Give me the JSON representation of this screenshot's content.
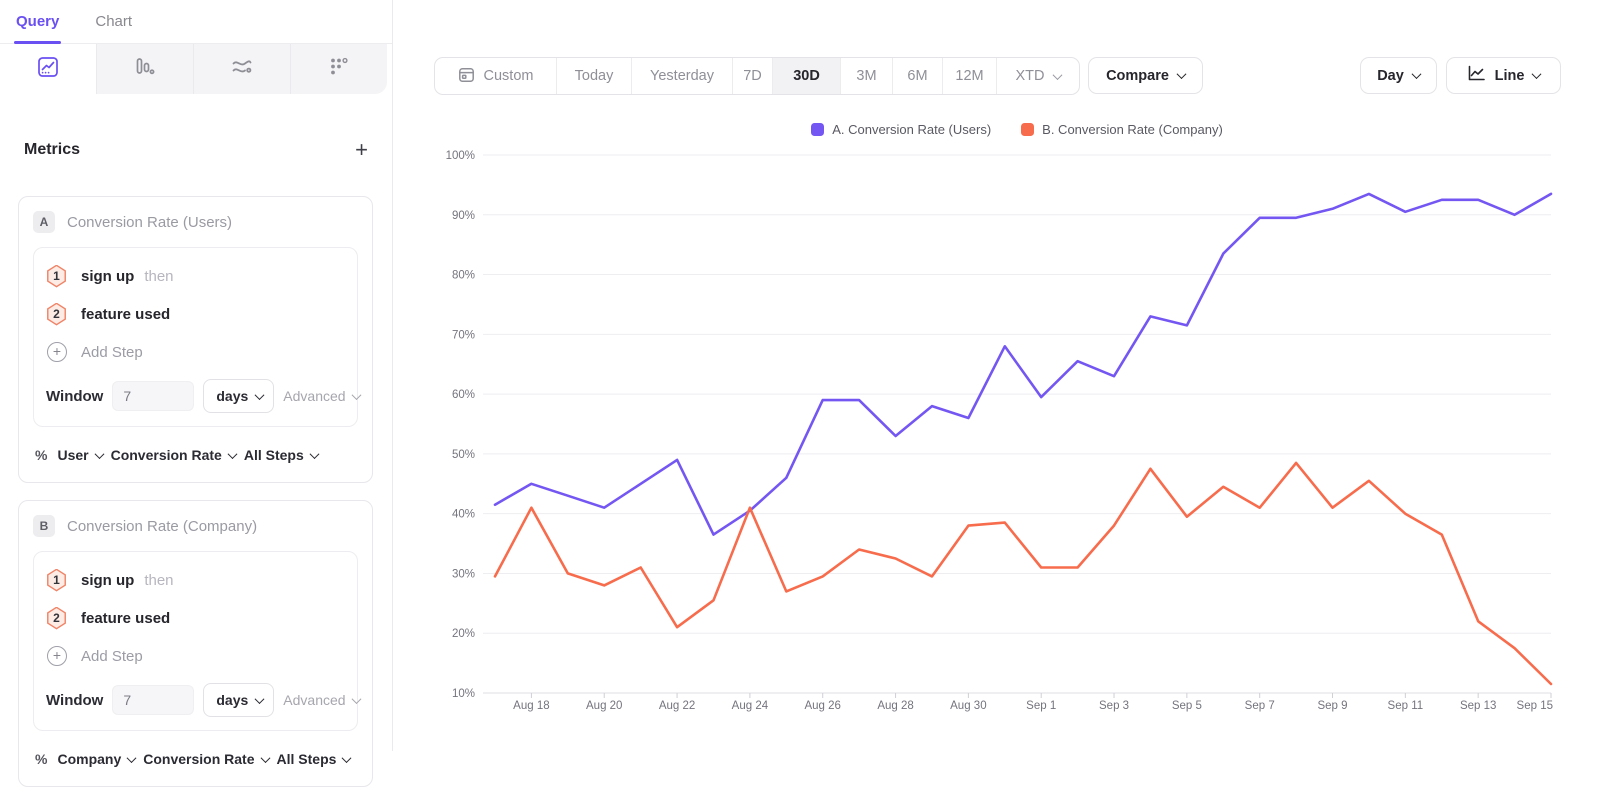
{
  "sidebar": {
    "tabs": [
      {
        "label": "Query"
      },
      {
        "label": "Chart"
      }
    ],
    "view_tabs": [
      {
        "icon": "insights-icon",
        "active": true
      },
      {
        "icon": "funnels-icon",
        "active": false
      },
      {
        "icon": "flows-icon",
        "active": false
      },
      {
        "icon": "retention-icon",
        "active": false
      }
    ],
    "metrics": {
      "title": "Metrics",
      "add_button": "+",
      "cards": [
        {
          "letter": "A",
          "name": "Conversion Rate (Users)",
          "steps": [
            {
              "number": "1",
              "event": "sign up",
              "suffix": "then"
            },
            {
              "number": "2",
              "event": "feature used",
              "suffix": ""
            }
          ],
          "add_step_label": "Add Step",
          "window_label": "Window",
          "window_value": "7",
          "window_unit": "days",
          "advanced_label": "Advanced",
          "measure": {
            "symbol": "%",
            "entity": "User",
            "metric": "Conversion Rate",
            "scope": "All Steps"
          }
        },
        {
          "letter": "B",
          "name": "Conversion Rate (Company)",
          "steps": [
            {
              "number": "1",
              "event": "sign up",
              "suffix": "then"
            },
            {
              "number": "2",
              "event": "feature used",
              "suffix": ""
            }
          ],
          "add_step_label": "Add Step",
          "window_label": "Window",
          "window_value": "7",
          "window_unit": "days",
          "advanced_label": "Advanced",
          "measure": {
            "symbol": "%",
            "entity": "Company",
            "metric": "Conversion Rate",
            "scope": "All Steps"
          }
        }
      ]
    }
  },
  "toolbar": {
    "date_ranges": [
      {
        "label": "Custom"
      },
      {
        "label": "Today"
      },
      {
        "label": "Yesterday"
      },
      {
        "label": "7D"
      },
      {
        "label": "30D"
      },
      {
        "label": "3M"
      },
      {
        "label": "6M"
      },
      {
        "label": "12M"
      },
      {
        "label": "XTD"
      }
    ],
    "selected_range": "30D",
    "compare_label": "Compare",
    "granularity_label": "Day",
    "chart_type_label": "Line"
  },
  "chart_data": {
    "type": "line",
    "x": [
      "Aug 17",
      "Aug 18",
      "Aug 19",
      "Aug 20",
      "Aug 21",
      "Aug 22",
      "Aug 23",
      "Aug 24",
      "Aug 25",
      "Aug 26",
      "Aug 27",
      "Aug 28",
      "Aug 29",
      "Aug 30",
      "Aug 31",
      "Sep 1",
      "Sep 2",
      "Sep 3",
      "Sep 4",
      "Sep 5",
      "Sep 6",
      "Sep 7",
      "Sep 8",
      "Sep 9",
      "Sep 10",
      "Sep 11",
      "Sep 12",
      "Sep 13",
      "Sep 14",
      "Sep 15"
    ],
    "series": [
      {
        "name": "A. Conversion Rate (Users)",
        "color": "#7457f2",
        "values": [
          41.5,
          45,
          43,
          41,
          45,
          49,
          36.5,
          40.5,
          46,
          59,
          59,
          53,
          58,
          56,
          68,
          59.5,
          65.5,
          63,
          73,
          71.5,
          83.5,
          89.5,
          89.5,
          91,
          93.5,
          90.5,
          92.5,
          92.5,
          90,
          93.5
        ]
      },
      {
        "name": "B. Conversion Rate (Company)",
        "color": "#f76c4c",
        "values": [
          29.5,
          41,
          30,
          28,
          31,
          21,
          25.5,
          41,
          27,
          29.5,
          34,
          32.5,
          29.5,
          38,
          38.5,
          31,
          31,
          38,
          47.5,
          39.5,
          44.5,
          41,
          48.5,
          41,
          45.5,
          40,
          36.5,
          22,
          17.5,
          11.5
        ]
      }
    ],
    "x_tick_labels": [
      {
        "label": "Aug 18",
        "index": 1
      },
      {
        "label": "Aug 20",
        "index": 3
      },
      {
        "label": "Aug 22",
        "index": 5
      },
      {
        "label": "Aug 24",
        "index": 7
      },
      {
        "label": "Aug 26",
        "index": 9
      },
      {
        "label": "Aug 28",
        "index": 11
      },
      {
        "label": "Aug 30",
        "index": 13
      },
      {
        "label": "Sep 1",
        "index": 15
      },
      {
        "label": "Sep 3",
        "index": 17
      },
      {
        "label": "Sep 5",
        "index": 19
      },
      {
        "label": "Sep 7",
        "index": 21
      },
      {
        "label": "Sep 9",
        "index": 23
      },
      {
        "label": "Sep 11",
        "index": 25
      },
      {
        "label": "Sep 13",
        "index": 27
      },
      {
        "label": "Sep 15",
        "index": 29
      }
    ],
    "y_ticks": [
      10,
      20,
      30,
      40,
      50,
      60,
      70,
      80,
      90,
      100
    ],
    "y_tick_format": "percent",
    "ylim": [
      10,
      100
    ],
    "grid": "horizontal",
    "legend_position": "top-center"
  },
  "colors": {
    "accent": "#6a4ff2",
    "series_a": "#7457f2",
    "series_b": "#f76c4c"
  }
}
